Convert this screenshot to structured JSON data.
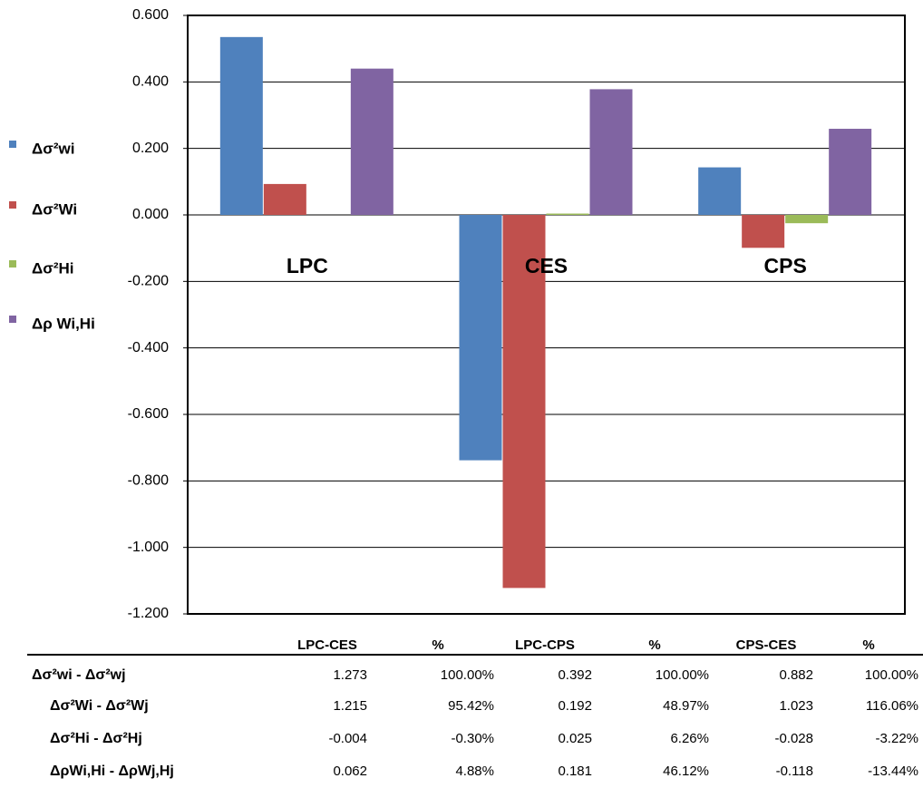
{
  "chart_data": {
    "type": "bar",
    "categories": [
      "LPC",
      "CES",
      "CPS"
    ],
    "series": [
      {
        "name": "Δσ²wi",
        "color": "#4f81bd",
        "values": [
          0.535,
          -0.738,
          0.143
        ]
      },
      {
        "name": "Δσ²Wi",
        "color": "#c0504d",
        "values": [
          0.093,
          -1.122,
          -0.099
        ]
      },
      {
        "name": "Δσ²Hi",
        "color": "#9bbb59",
        "values": [
          0.0,
          0.004,
          -0.025
        ]
      },
      {
        "name": "Δρ Wi,Hi",
        "color": "#8064a2",
        "values": [
          0.44,
          0.378,
          0.259
        ]
      }
    ],
    "ylim": [
      -1.2,
      0.6
    ],
    "yticks": [
      {
        "value": -1.2,
        "label": "-1.200"
      },
      {
        "value": -1.0,
        "label": "-1.000"
      },
      {
        "value": -0.8,
        "label": "-0.800"
      },
      {
        "value": -0.6,
        "label": "-0.600"
      },
      {
        "value": -0.4,
        "label": "-0.400"
      },
      {
        "value": -0.2,
        "label": "-0.200"
      },
      {
        "value": 0,
        "label": "0.000"
      },
      {
        "value": 0.2,
        "label": "0.200"
      },
      {
        "value": 0.4,
        "label": "0.400"
      },
      {
        "value": 0.6,
        "label": "0.600"
      }
    ],
    "grid": true
  },
  "table": {
    "header": [
      "LPC-CES",
      "%",
      "LPC-CPS",
      "%",
      "CPS-CES",
      "%"
    ],
    "rows": [
      [
        "Δσ²wi - Δσ²wj",
        "1.273",
        "100.00%",
        "0.392",
        "100.00%",
        "0.882",
        "100.00%"
      ],
      [
        "Δσ²Wi - Δσ²Wj",
        "1.215",
        "95.42%",
        "0.192",
        "48.97%",
        "1.023",
        "116.06%"
      ],
      [
        "Δσ²Hi - Δσ²Hj",
        "-0.004",
        "-0.30%",
        "0.025",
        "6.26%",
        "-0.028",
        "-3.22%"
      ],
      [
        "ΔρWi,Hi - ΔρWj,Hj",
        "0.062",
        "4.88%",
        "0.181",
        "46.12%",
        "-0.118",
        "-13.44%"
      ]
    ]
  }
}
